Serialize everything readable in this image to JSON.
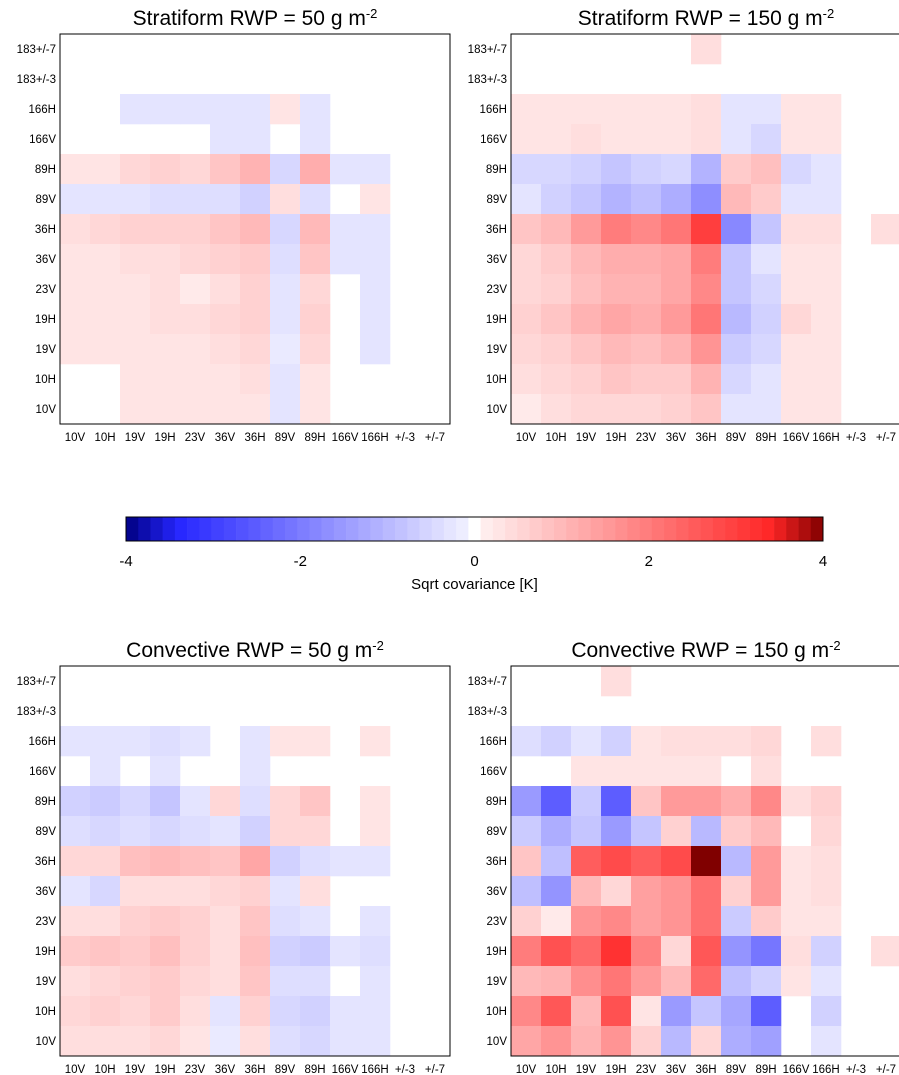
{
  "channels": [
    "10V",
    "10H",
    "19V",
    "19H",
    "23V",
    "36V",
    "36H",
    "89V",
    "89H",
    "166V",
    "166H",
    "183+/-3",
    "183+/-7"
  ],
  "x_tick_labels": [
    "10V",
    "10H",
    "19V",
    "19H",
    "23V",
    "36V",
    "36H",
    "89V",
    "89H",
    "166V",
    "166H",
    "+/-3",
    "+/-7"
  ],
  "y_tick_labels": [
    "10V",
    "10H",
    "19V",
    "19H",
    "23V",
    "36V",
    "36H",
    "89V",
    "89H",
    "166V",
    "166H",
    "183+/-3",
    "183+/-7"
  ],
  "colorbar": {
    "label": "Sqrt covariance [K]",
    "ticks": [
      "-4",
      "-2",
      "0",
      "2",
      "4"
    ],
    "min": -4,
    "max": 4,
    "colormap": "blue-white-red",
    "neg_end": "#000080",
    "pos_end": "#800000"
  },
  "chart_data": [
    {
      "type": "heatmap",
      "title_main": "Stratiform RWP = 50 g m",
      "title_sup": "-2",
      "rows_top_to_bottom": [
        "183+/-7",
        "183+/-3",
        "166H",
        "166V",
        "89H",
        "89V",
        "36H",
        "36V",
        "23V",
        "19H",
        "19V",
        "10H",
        "10V"
      ],
      "columns": [
        "10V",
        "10H",
        "19V",
        "19H",
        "23V",
        "36V",
        "36H",
        "89V",
        "89H",
        "166V",
        "166H",
        "183+/-3",
        "183+/-7"
      ],
      "values": [
        [
          0,
          0,
          0,
          0,
          0,
          0,
          0,
          0,
          0,
          0,
          0,
          0,
          0
        ],
        [
          0,
          0,
          0,
          0,
          0,
          0,
          0,
          0,
          0,
          0,
          0,
          0,
          0
        ],
        [
          0,
          0,
          -0.3,
          -0.3,
          -0.3,
          -0.3,
          -0.3,
          0.3,
          -0.3,
          0,
          0,
          0,
          0
        ],
        [
          0,
          0,
          0,
          0,
          0,
          -0.3,
          -0.3,
          0,
          -0.3,
          0,
          0,
          0,
          0
        ],
        [
          0.3,
          0.3,
          0.5,
          0.6,
          0.5,
          0.8,
          1.1,
          -0.5,
          1.2,
          -0.3,
          -0.3,
          0,
          0
        ],
        [
          -0.3,
          -0.3,
          -0.3,
          -0.4,
          -0.4,
          -0.4,
          -0.6,
          0.4,
          -0.4,
          0,
          0.3,
          0,
          0
        ],
        [
          0.4,
          0.5,
          0.6,
          0.6,
          0.6,
          0.8,
          1.0,
          -0.5,
          1.0,
          -0.3,
          -0.3,
          0,
          0
        ],
        [
          0.3,
          0.3,
          0.4,
          0.4,
          0.5,
          0.6,
          0.7,
          -0.4,
          0.8,
          -0.3,
          -0.3,
          0,
          0
        ],
        [
          0.3,
          0.3,
          0.3,
          0.4,
          0.2,
          0.4,
          0.6,
          -0.3,
          0.5,
          0,
          -0.3,
          0,
          0
        ],
        [
          0.3,
          0.3,
          0.3,
          0.4,
          0.4,
          0.5,
          0.6,
          -0.3,
          0.6,
          0,
          -0.3,
          0,
          0
        ],
        [
          0.3,
          0.3,
          0.3,
          0.3,
          0.3,
          0.4,
          0.5,
          -0.2,
          0.5,
          0,
          -0.3,
          0,
          0
        ],
        [
          0,
          0,
          0.3,
          0.3,
          0.3,
          0.3,
          0.4,
          -0.3,
          0.3,
          0,
          0,
          0,
          0
        ],
        [
          0,
          0,
          0.3,
          0.3,
          0.3,
          0.3,
          0.3,
          -0.3,
          0.3,
          0,
          0,
          0,
          0
        ]
      ]
    },
    {
      "type": "heatmap",
      "title_main": "Stratiform RWP = 150 g m",
      "title_sup": "-2",
      "rows_top_to_bottom": [
        "183+/-7",
        "183+/-3",
        "166H",
        "166V",
        "89H",
        "89V",
        "36H",
        "36V",
        "23V",
        "19H",
        "19V",
        "10H",
        "10V"
      ],
      "columns": [
        "10V",
        "10H",
        "19V",
        "19H",
        "23V",
        "36V",
        "36H",
        "89V",
        "89H",
        "166V",
        "166H",
        "183+/-3",
        "183+/-7"
      ],
      "values": [
        [
          0,
          0,
          0,
          0,
          0,
          0,
          0.4,
          0,
          0,
          0,
          0,
          0,
          0
        ],
        [
          0,
          0,
          0,
          0,
          0,
          0,
          0,
          0,
          0,
          0,
          0,
          0,
          0
        ],
        [
          0.3,
          0.3,
          0.3,
          0.3,
          0.3,
          0.3,
          0.4,
          -0.3,
          -0.3,
          0.3,
          0.3,
          0,
          0
        ],
        [
          0.3,
          0.3,
          0.4,
          0.3,
          0.3,
          0.3,
          0.4,
          -0.3,
          -0.5,
          0.3,
          0.3,
          0,
          0
        ],
        [
          -0.5,
          -0.5,
          -0.6,
          -0.8,
          -0.6,
          -0.5,
          -1.1,
          0.7,
          0.9,
          -0.5,
          -0.3,
          0,
          0
        ],
        [
          -0.3,
          -0.6,
          -0.8,
          -1.1,
          -0.9,
          -1.2,
          -1.7,
          1.0,
          0.7,
          -0.3,
          -0.3,
          0,
          0
        ],
        [
          0.8,
          1.0,
          1.5,
          2.0,
          1.8,
          2.1,
          3.0,
          -1.8,
          -0.8,
          0.4,
          0.4,
          0,
          0.4
        ],
        [
          0.5,
          0.7,
          1.0,
          1.2,
          1.2,
          1.3,
          2.0,
          -0.8,
          -0.3,
          0.3,
          0.3,
          0,
          0
        ],
        [
          0.5,
          0.6,
          0.9,
          1.1,
          1.1,
          1.3,
          1.8,
          -0.8,
          -0.5,
          0.3,
          0.3,
          0,
          0
        ],
        [
          0.6,
          0.8,
          1.1,
          1.3,
          1.2,
          1.5,
          2.1,
          -1.0,
          -0.6,
          0.5,
          0.3,
          0,
          0
        ],
        [
          0.5,
          0.6,
          0.8,
          1.0,
          0.9,
          1.1,
          1.6,
          -0.7,
          -0.5,
          0.3,
          0.3,
          0,
          0
        ],
        [
          0.4,
          0.5,
          0.6,
          0.8,
          0.7,
          0.7,
          1.1,
          -0.5,
          -0.3,
          0.3,
          0.3,
          0,
          0
        ],
        [
          0.2,
          0.4,
          0.5,
          0.5,
          0.5,
          0.6,
          0.8,
          -0.3,
          -0.3,
          0.3,
          0.3,
          0,
          0
        ]
      ]
    },
    {
      "type": "heatmap",
      "title_main": "Convective RWP = 50 g m",
      "title_sup": "-2",
      "rows_top_to_bottom": [
        "183+/-7",
        "183+/-3",
        "166H",
        "166V",
        "89H",
        "89V",
        "36H",
        "36V",
        "23V",
        "19H",
        "19V",
        "10H",
        "10V"
      ],
      "columns": [
        "10V",
        "10H",
        "19V",
        "19H",
        "23V",
        "36V",
        "36H",
        "89V",
        "89H",
        "166V",
        "166H",
        "183+/-3",
        "183+/-7"
      ],
      "values": [
        [
          0,
          0,
          0,
          0,
          0,
          0,
          0,
          0,
          0,
          0,
          0,
          0,
          0
        ],
        [
          0,
          0,
          0,
          0,
          0,
          0,
          0,
          0,
          0,
          0,
          0,
          0,
          0
        ],
        [
          -0.3,
          -0.3,
          -0.3,
          -0.4,
          -0.3,
          0,
          -0.3,
          0.3,
          0.3,
          0,
          0.3,
          0,
          0
        ],
        [
          0,
          -0.3,
          0,
          -0.3,
          0,
          0,
          -0.3,
          0,
          0,
          0,
          0,
          0,
          0
        ],
        [
          -0.6,
          -0.7,
          -0.5,
          -0.8,
          -0.3,
          0.5,
          -0.4,
          0.5,
          0.8,
          0,
          0.3,
          0,
          0
        ],
        [
          -0.4,
          -0.5,
          -0.4,
          -0.5,
          -0.4,
          -0.3,
          -0.6,
          0.5,
          0.5,
          0,
          0.3,
          0,
          0
        ],
        [
          0.5,
          0.5,
          0.9,
          1.0,
          0.9,
          0.8,
          1.3,
          -0.6,
          -0.4,
          -0.3,
          -0.3,
          0,
          0
        ],
        [
          -0.3,
          -0.5,
          0.4,
          0.4,
          0.4,
          0.5,
          0.6,
          -0.3,
          0.4,
          0,
          0,
          0,
          0
        ],
        [
          0.4,
          0.4,
          0.6,
          0.7,
          0.6,
          0.4,
          0.8,
          -0.4,
          -0.3,
          0,
          -0.3,
          0,
          0
        ],
        [
          0.7,
          0.8,
          0.7,
          0.9,
          0.6,
          0.4,
          0.9,
          -0.6,
          -0.7,
          -0.3,
          -0.4,
          0,
          0
        ],
        [
          0.4,
          0.5,
          0.6,
          0.7,
          0.5,
          0.4,
          0.8,
          -0.4,
          -0.4,
          0,
          -0.3,
          0,
          0
        ],
        [
          0.5,
          0.6,
          0.5,
          0.7,
          0.4,
          -0.3,
          0.6,
          -0.5,
          -0.6,
          -0.3,
          -0.3,
          0,
          0
        ],
        [
          0.4,
          0.4,
          0.4,
          0.5,
          0.3,
          -0.2,
          0.4,
          -0.4,
          -0.5,
          -0.3,
          -0.3,
          0,
          0
        ]
      ]
    },
    {
      "type": "heatmap",
      "title_main": "Convective RWP = 150 g m",
      "title_sup": "-2",
      "rows_top_to_bottom": [
        "183+/-7",
        "183+/-3",
        "166H",
        "166V",
        "89H",
        "89V",
        "36H",
        "36V",
        "23V",
        "19H",
        "19V",
        "10H",
        "10V"
      ],
      "columns": [
        "10V",
        "10H",
        "19V",
        "19H",
        "23V",
        "36V",
        "36H",
        "89V",
        "89H",
        "166V",
        "166H",
        "183+/-3",
        "183+/-7"
      ],
      "values": [
        [
          0,
          0,
          0,
          0.4,
          0,
          0,
          0,
          0,
          0,
          0,
          0,
          0,
          0
        ],
        [
          0,
          0,
          0,
          0,
          0,
          0,
          0,
          0,
          0,
          0,
          0,
          0,
          0
        ],
        [
          -0.4,
          -0.6,
          -0.3,
          -0.6,
          0.3,
          0.4,
          0.4,
          0.4,
          0.5,
          0,
          0.4,
          0,
          0
        ],
        [
          0,
          0,
          0.3,
          0.3,
          0.3,
          0.3,
          0.3,
          0,
          0.4,
          0,
          0,
          0,
          0
        ],
        [
          -1.5,
          -2.5,
          -0.7,
          -2.5,
          0.8,
          1.5,
          1.5,
          1.2,
          1.8,
          0.4,
          0.6,
          0,
          0
        ],
        [
          -0.7,
          -1.2,
          -0.8,
          -1.5,
          -0.8,
          0.6,
          -1.0,
          0.7,
          1.0,
          0,
          0.5,
          0,
          0
        ],
        [
          0.8,
          -0.9,
          2.5,
          2.8,
          2.5,
          2.8,
          4.0,
          -1.0,
          1.5,
          0.3,
          0.4,
          0,
          0
        ],
        [
          -0.9,
          -1.6,
          1.0,
          0.5,
          1.4,
          1.6,
          2.2,
          0.6,
          1.5,
          0.3,
          0.4,
          0,
          0
        ],
        [
          0.6,
          0.2,
          1.6,
          1.8,
          1.4,
          1.6,
          2.2,
          -0.7,
          0.7,
          0.3,
          0.3,
          0,
          0
        ],
        [
          2.0,
          2.7,
          2.3,
          3.2,
          1.9,
          0.5,
          2.6,
          -1.6,
          -2.1,
          0.4,
          -0.6,
          0,
          0.4
        ],
        [
          1.0,
          1.1,
          1.7,
          2.1,
          1.5,
          1.0,
          2.3,
          -0.9,
          -0.6,
          0.3,
          -0.3,
          0,
          0
        ],
        [
          1.8,
          2.6,
          1.0,
          2.7,
          0.3,
          -1.5,
          -0.8,
          -1.3,
          -2.5,
          0,
          -0.6,
          0,
          0
        ],
        [
          1.3,
          1.6,
          1.1,
          1.6,
          0.6,
          -1.0,
          0.5,
          -1.2,
          -1.4,
          0,
          -0.3,
          0,
          0
        ]
      ]
    }
  ]
}
